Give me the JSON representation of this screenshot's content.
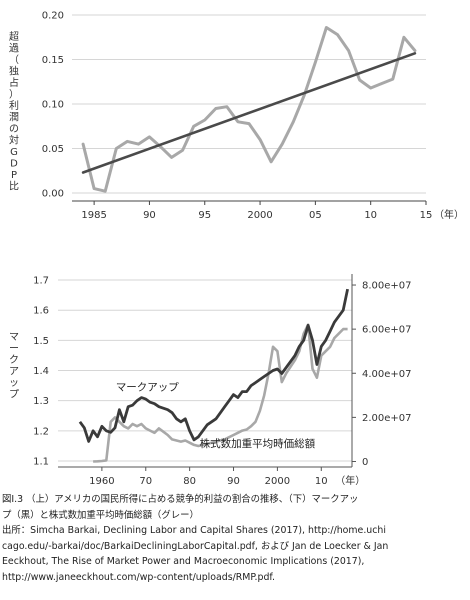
{
  "chart_data": [
    {
      "type": "line",
      "ylabel": "超過（独占）利潤の対GDP比",
      "xlabel": "（年）",
      "ylim": [
        0,
        0.2
      ],
      "xlim": [
        1983,
        2015
      ],
      "x_ticks": [
        {
          "value": 1985,
          "label": "1985"
        },
        {
          "value": 1990,
          "label": "90"
        },
        {
          "value": 1995,
          "label": "95"
        },
        {
          "value": 2000,
          "label": "2000"
        },
        {
          "value": 2005,
          "label": "05"
        },
        {
          "value": 2010,
          "label": "10"
        },
        {
          "value": 2015,
          "label": "15"
        }
      ],
      "y_ticks": [
        {
          "value": 0,
          "label": "0.00"
        },
        {
          "value": 0.05,
          "label": "0.05"
        },
        {
          "value": 0.1,
          "label": "0.10"
        },
        {
          "value": 0.15,
          "label": "0.15"
        },
        {
          "value": 0.2,
          "label": "0.20"
        }
      ],
      "grid": "horizontal",
      "series": [
        {
          "color": "#a8a8a8",
          "points": [
            [
              1984,
              0.055
            ],
            [
              1985,
              0.005
            ],
            [
              1986,
              0.002
            ],
            [
              1987,
              0.05
            ],
            [
              1988,
              0.058
            ],
            [
              1989,
              0.055
            ],
            [
              1990,
              0.063
            ],
            [
              1991,
              0.052
            ],
            [
              1992,
              0.04
            ],
            [
              1993,
              0.048
            ],
            [
              1994,
              0.075
            ],
            [
              1995,
              0.082
            ],
            [
              1996,
              0.095
            ],
            [
              1997,
              0.097
            ],
            [
              1998,
              0.08
            ],
            [
              1999,
              0.078
            ],
            [
              2000,
              0.06
            ],
            [
              2001,
              0.035
            ],
            [
              2002,
              0.055
            ],
            [
              2003,
              0.08
            ],
            [
              2004,
              0.11
            ],
            [
              2005,
              0.147
            ],
            [
              2006,
              0.186
            ],
            [
              2007,
              0.178
            ],
            [
              2008,
              0.16
            ],
            [
              2009,
              0.127
            ],
            [
              2010,
              0.118
            ],
            [
              2011,
              0.123
            ],
            [
              2012,
              0.128
            ],
            [
              2013,
              0.175
            ],
            [
              2014,
              0.16
            ]
          ]
        },
        {
          "color": "#4a4a4a",
          "points": [
            [
              1984,
              0.023
            ],
            [
              2014,
              0.157
            ]
          ]
        }
      ]
    },
    {
      "type": "line",
      "ylabel": "マークアップ",
      "xlabel": "（年）",
      "ylim": [
        1.08,
        1.72
      ],
      "xlim": [
        1950,
        2017
      ],
      "x_ticks": [
        {
          "value": 1960,
          "label": "1960"
        },
        {
          "value": 1970,
          "label": "70"
        },
        {
          "value": 1980,
          "label": "80"
        },
        {
          "value": 1990,
          "label": "90"
        },
        {
          "value": 2000,
          "label": "2000"
        },
        {
          "value": 2010,
          "label": "10"
        }
      ],
      "y_ticks": [
        {
          "value": 1.1,
          "label": "1.1"
        },
        {
          "value": 1.2,
          "label": "1.2"
        },
        {
          "value": 1.3,
          "label": "1.3"
        },
        {
          "value": 1.4,
          "label": "1.4"
        },
        {
          "value": 1.5,
          "label": "1.5"
        },
        {
          "value": 1.6,
          "label": "1.6"
        },
        {
          "value": 1.7,
          "label": "1.7"
        }
      ],
      "y2lim": [
        -2500000.0,
        85000000.0
      ],
      "y2_ticks": [
        {
          "value": 0,
          "label": "0"
        },
        {
          "value": 20000000,
          "label": "2.00e+07"
        },
        {
          "value": 40000000,
          "label": "4.00e+07"
        },
        {
          "value": 60000000,
          "label": "6.00e+07"
        },
        {
          "value": 80000000,
          "label": "8.00e+07"
        }
      ],
      "grid": "horizontal",
      "series": [
        {
          "name": "マークアップ",
          "axis": "left",
          "color": "#3a3a3a",
          "points": [
            [
              1955,
              1.23
            ],
            [
              1956,
              1.21
            ],
            [
              1957,
              1.165
            ],
            [
              1958,
              1.2
            ],
            [
              1959,
              1.18
            ],
            [
              1960,
              1.215
            ],
            [
              1961,
              1.2
            ],
            [
              1962,
              1.195
            ],
            [
              1963,
              1.21
            ],
            [
              1964,
              1.27
            ],
            [
              1965,
              1.23
            ],
            [
              1966,
              1.28
            ],
            [
              1967,
              1.285
            ],
            [
              1968,
              1.3
            ],
            [
              1969,
              1.31
            ],
            [
              1970,
              1.305
            ],
            [
              1971,
              1.295
            ],
            [
              1972,
              1.29
            ],
            [
              1973,
              1.28
            ],
            [
              1974,
              1.275
            ],
            [
              1975,
              1.27
            ],
            [
              1976,
              1.26
            ],
            [
              1977,
              1.24
            ],
            [
              1978,
              1.23
            ],
            [
              1979,
              1.24
            ],
            [
              1980,
              1.2
            ],
            [
              1981,
              1.17
            ],
            [
              1982,
              1.18
            ],
            [
              1983,
              1.2
            ],
            [
              1984,
              1.22
            ],
            [
              1985,
              1.23
            ],
            [
              1986,
              1.24
            ],
            [
              1987,
              1.26
            ],
            [
              1988,
              1.28
            ],
            [
              1989,
              1.3
            ],
            [
              1990,
              1.32
            ],
            [
              1991,
              1.31
            ],
            [
              1992,
              1.33
            ],
            [
              1993,
              1.33
            ],
            [
              1994,
              1.35
            ],
            [
              1995,
              1.36
            ],
            [
              1996,
              1.37
            ],
            [
              1997,
              1.38
            ],
            [
              1998,
              1.39
            ],
            [
              1999,
              1.4
            ],
            [
              2000,
              1.405
            ],
            [
              2001,
              1.39
            ],
            [
              2002,
              1.41
            ],
            [
              2003,
              1.43
            ],
            [
              2004,
              1.45
            ],
            [
              2005,
              1.48
            ],
            [
              2006,
              1.5
            ],
            [
              2007,
              1.55
            ],
            [
              2008,
              1.5
            ],
            [
              2009,
              1.42
            ],
            [
              2010,
              1.48
            ],
            [
              2011,
              1.5
            ],
            [
              2012,
              1.53
            ],
            [
              2013,
              1.56
            ],
            [
              2014,
              1.58
            ],
            [
              2015,
              1.6
            ],
            [
              2016,
              1.67
            ]
          ]
        },
        {
          "name": "株式数加重平均時価総額",
          "axis": "right",
          "color": "#a8a8a8",
          "points": [
            [
              1958,
              0
            ],
            [
              1959,
              100000
            ],
            [
              1960,
              200000
            ],
            [
              1961,
              500000
            ],
            [
              1962,
              18000000
            ],
            [
              1963,
              20000000
            ],
            [
              1964,
              18000000
            ],
            [
              1965,
              16000000
            ],
            [
              1966,
              15000000
            ],
            [
              1967,
              17000000
            ],
            [
              1968,
              16000000
            ],
            [
              1969,
              17000000
            ],
            [
              1970,
              15000000
            ],
            [
              1971,
              14000000
            ],
            [
              1972,
              13000000
            ],
            [
              1973,
              15000000
            ],
            [
              1974,
              13500000
            ],
            [
              1975,
              12000000
            ],
            [
              1976,
              10000000
            ],
            [
              1977,
              9500000
            ],
            [
              1978,
              9000000
            ],
            [
              1979,
              9500000
            ],
            [
              1980,
              8500000
            ],
            [
              1981,
              7500000
            ],
            [
              1982,
              7000000
            ],
            [
              1983,
              7500000
            ],
            [
              1984,
              8000000
            ],
            [
              1985,
              8500000
            ],
            [
              1986,
              9000000
            ],
            [
              1987,
              9500000
            ],
            [
              1988,
              10000000
            ],
            [
              1989,
              11000000
            ],
            [
              1990,
              12000000
            ],
            [
              1991,
              13000000
            ],
            [
              1992,
              14000000
            ],
            [
              1993,
              14500000
            ],
            [
              1994,
              16000000
            ],
            [
              1995,
              18000000
            ],
            [
              1996,
              23000000
            ],
            [
              1997,
              30000000
            ],
            [
              1998,
              40000000
            ],
            [
              1999,
              52000000
            ],
            [
              2000,
              50000000
            ],
            [
              2001,
              36000000
            ],
            [
              2002,
              40000000
            ],
            [
              2003,
              43000000
            ],
            [
              2004,
              46000000
            ],
            [
              2005,
              50000000
            ],
            [
              2006,
              58000000
            ],
            [
              2007,
              62000000
            ],
            [
              2008,
              42000000
            ],
            [
              2009,
              38000000
            ],
            [
              2010,
              48000000
            ],
            [
              2011,
              50000000
            ],
            [
              2012,
              52000000
            ],
            [
              2013,
              56000000
            ],
            [
              2014,
              58000000
            ],
            [
              2015,
              60000000
            ],
            [
              2016,
              60000000
            ]
          ]
        }
      ],
      "annotations": [
        {
          "text": "マークアップ",
          "x": 1965,
          "y": 1.32
        },
        {
          "text": "株式数加重平均時価総額",
          "x": 1985,
          "y": 1.15
        }
      ]
    }
  ],
  "caption": {
    "lines": [
      "図I.3 （上）アメリカの国民所得に占める競争的利益の割合の推移、（下）マークアッ",
      "プ（黒）と株式数加重平均時価総額（グレー）",
      "出所：Simcha Barkai, Declining Labor and Capital Shares (2017), http://home.uchi",
      "cago.edu/-barkai/doc/BarkaiDecliningLaborCapital.pdf, および Jan de Loecker & Jan",
      "Eeckhout, The Rise of Market Power and Macroeconomic Implications (2017),",
      "http://www.janeeckhout.com/wp-content/uploads/RMP.pdf."
    ]
  }
}
